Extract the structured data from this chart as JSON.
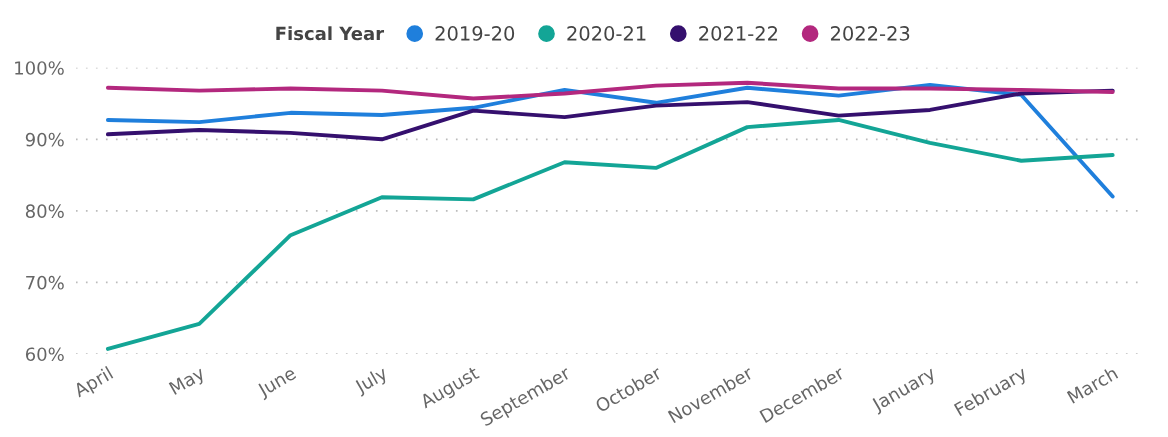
{
  "chart_data": {
    "type": "line",
    "legend_title": "Fiscal Year",
    "legend": "top",
    "grid": "y",
    "line_style": "solid",
    "marker": "none",
    "categories": [
      "April",
      "May",
      "June",
      "July",
      "August",
      "September",
      "October",
      "November",
      "December",
      "January",
      "February",
      "March"
    ],
    "ylim": [
      60,
      100
    ],
    "yticks": [
      {
        "value": 60,
        "label": "60%"
      },
      {
        "value": 70,
        "label": "70%"
      },
      {
        "value": 80,
        "label": "80%"
      },
      {
        "value": 90,
        "label": "90%"
      },
      {
        "value": 100,
        "label": "100%"
      }
    ],
    "series": [
      {
        "name": "2019-20",
        "color": "#1f7fdc",
        "values": [
          92.7,
          92.4,
          93.7,
          93.4,
          94.4,
          96.9,
          95.1,
          97.2,
          96.1,
          97.6,
          96.2,
          82.0
        ]
      },
      {
        "name": "2020-21",
        "color": "#13a596",
        "values": [
          60.7,
          64.2,
          76.6,
          81.9,
          81.6,
          86.8,
          86.0,
          91.7,
          92.7,
          89.5,
          87.0,
          87.8
        ]
      },
      {
        "name": "2021-22",
        "color": "#35106e",
        "values": [
          90.7,
          91.3,
          90.9,
          90.0,
          94.0,
          93.1,
          94.7,
          95.2,
          93.3,
          94.1,
          96.4,
          96.8
        ]
      },
      {
        "name": "2022-23",
        "color": "#b3287e",
        "values": [
          97.2,
          96.8,
          97.1,
          96.8,
          95.7,
          96.4,
          97.5,
          97.9,
          97.1,
          97.1,
          96.9,
          96.6
        ]
      }
    ]
  }
}
